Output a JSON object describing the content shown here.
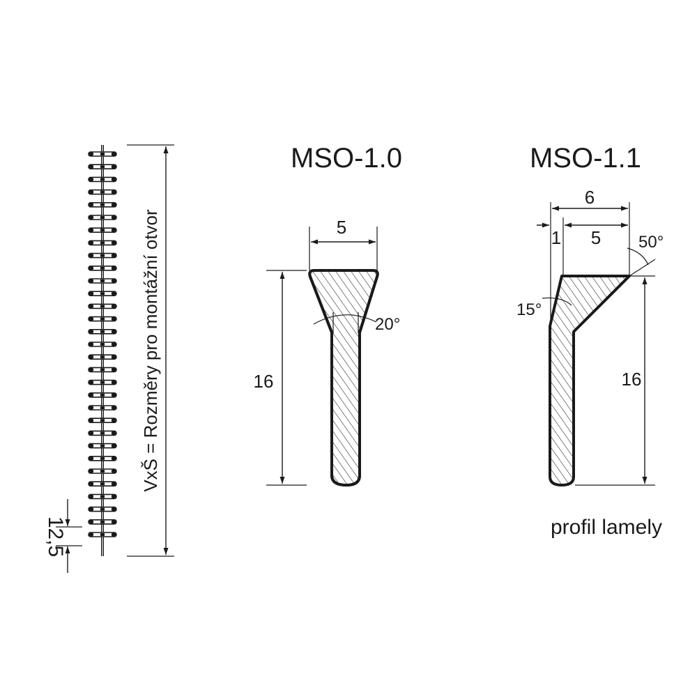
{
  "left_elevation": {
    "label": "VxŠ = Rozměry pro montážní otvor",
    "pitch": "12,5",
    "blade_count": 31
  },
  "profiles": [
    {
      "title": "MSO-1.0",
      "width_label": "5",
      "height_label": "16",
      "angle_label": "20°"
    },
    {
      "title": "MSO-1.1",
      "total_width_label": "6",
      "offset_label": "1",
      "width_label": "5",
      "height_label": "16",
      "top_angle_label": "50°",
      "side_angle_label": "15°",
      "caption": "profil lamely"
    }
  ],
  "colors": {
    "line": "#1a1a1a",
    "background": "#ffffff"
  }
}
